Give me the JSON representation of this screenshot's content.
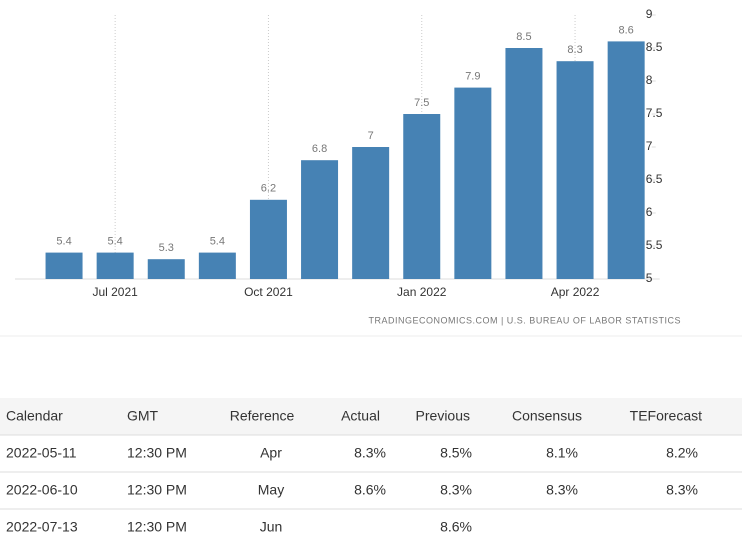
{
  "chart_data": {
    "type": "bar",
    "categories": [
      null,
      "Jul 2021",
      null,
      null,
      "Oct 2021",
      null,
      null,
      "Jan 2022",
      null,
      null,
      "Apr 2022",
      null
    ],
    "values": [
      5.4,
      5.4,
      5.3,
      5.4,
      6.2,
      6.8,
      7,
      7.5,
      7.9,
      8.5,
      8.3,
      8.6
    ],
    "color": "#4682b4",
    "ylim": [
      5,
      9
    ],
    "yticks": [
      5,
      5.5,
      6,
      6.5,
      7,
      7.5,
      8,
      8.5,
      9
    ],
    "source": "TRADINGECONOMICS.COM | U.S. BUREAU OF LABOR STATISTICS"
  },
  "table": {
    "header": [
      "Calendar",
      "GMT",
      "Reference",
      "Actual",
      "Previous",
      "Consensus",
      "TEForecast"
    ],
    "rows": [
      [
        "2022-05-11",
        "12:30 PM",
        "Apr",
        "8.3%",
        "8.5%",
        "8.1%",
        "8.2%"
      ],
      [
        "2022-06-10",
        "12:30 PM",
        "May",
        "8.6%",
        "8.3%",
        "8.3%",
        "8.3%"
      ],
      [
        "2022-07-13",
        "12:30 PM",
        "Jun",
        null,
        "8.6%",
        null,
        null
      ]
    ]
  }
}
